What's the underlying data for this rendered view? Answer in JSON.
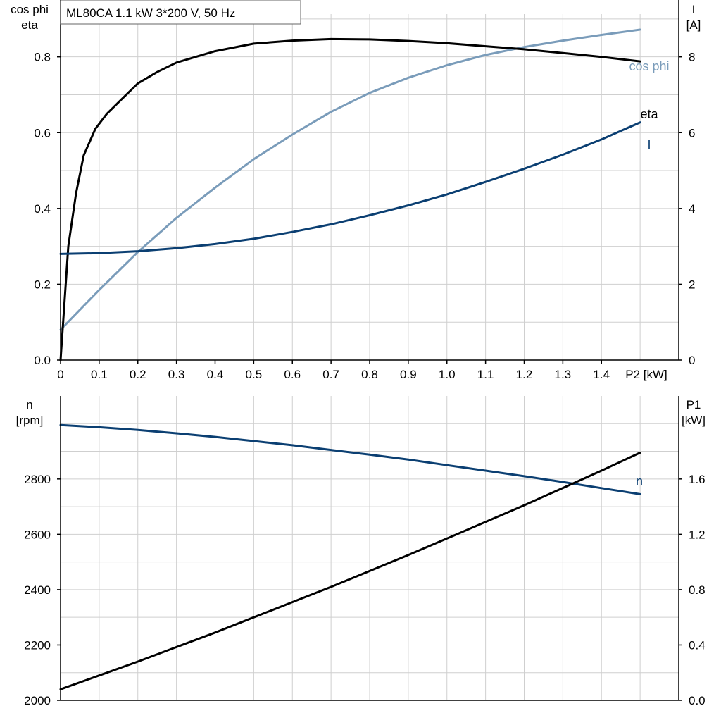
{
  "chart_data": [
    {
      "type": "line",
      "title": "ML80CA   1.1 kW   3*200 V, 50 Hz",
      "xlabel": "P2 [kW]",
      "xlim": [
        0,
        1.6
      ],
      "xticks": [
        0,
        0.1,
        0.2,
        0.3,
        0.4,
        0.5,
        0.6,
        0.7,
        0.8,
        0.9,
        1.0,
        1.1,
        1.2,
        1.3,
        1.4
      ],
      "left_axis": {
        "label_lines": [
          "cos phi",
          "eta"
        ],
        "ylim": [
          0,
          0.95
        ],
        "ticks": [
          "0.0",
          "0.2",
          "0.4",
          "0.6",
          "0.8"
        ],
        "tick_values": [
          0,
          0.2,
          0.4,
          0.6,
          0.8
        ]
      },
      "right_axis": {
        "label_lines": [
          "I",
          "[A]"
        ],
        "ylim": [
          0,
          9.5
        ],
        "ticks": [
          "0",
          "2",
          "4",
          "6",
          "8"
        ],
        "tick_values": [
          0,
          2,
          4,
          6,
          8
        ]
      },
      "grid": true,
      "series": [
        {
          "name": "cos phi",
          "axis": "left",
          "color": "#7a9cba",
          "x": [
            0,
            0.1,
            0.2,
            0.3,
            0.4,
            0.5,
            0.6,
            0.7,
            0.8,
            0.9,
            1.0,
            1.1,
            1.2,
            1.3,
            1.4,
            1.5
          ],
          "values": [
            0.08,
            0.185,
            0.285,
            0.375,
            0.455,
            0.53,
            0.595,
            0.655,
            0.705,
            0.745,
            0.778,
            0.805,
            0.826,
            0.843,
            0.858,
            0.872
          ]
        },
        {
          "name": "eta",
          "axis": "left",
          "color": "#000000",
          "x": [
            0,
            0.02,
            0.04,
            0.06,
            0.09,
            0.12,
            0.15,
            0.2,
            0.25,
            0.3,
            0.4,
            0.5,
            0.6,
            0.7,
            0.8,
            0.9,
            1.0,
            1.1,
            1.2,
            1.3,
            1.4,
            1.5
          ],
          "values": [
            0,
            0.3,
            0.44,
            0.54,
            0.61,
            0.65,
            0.68,
            0.73,
            0.76,
            0.785,
            0.815,
            0.835,
            0.843,
            0.847,
            0.846,
            0.842,
            0.836,
            0.828,
            0.82,
            0.81,
            0.8,
            0.788
          ]
        },
        {
          "name": "I",
          "axis": "right",
          "color": "#0b3f72",
          "x": [
            0,
            0.1,
            0.2,
            0.3,
            0.4,
            0.5,
            0.6,
            0.7,
            0.8,
            0.9,
            1.0,
            1.1,
            1.2,
            1.3,
            1.4,
            1.5
          ],
          "values": [
            2.8,
            2.82,
            2.87,
            2.95,
            3.06,
            3.2,
            3.38,
            3.58,
            3.82,
            4.08,
            4.37,
            4.7,
            5.05,
            5.42,
            5.82,
            6.27
          ]
        }
      ]
    },
    {
      "type": "line",
      "xlim": [
        0,
        1.6
      ],
      "left_axis": {
        "label_lines": [
          "n",
          "[rpm]"
        ],
        "ylim": [
          2000,
          3100
        ],
        "ticks": [
          "2000",
          "2200",
          "2400",
          "2600",
          "2800"
        ],
        "tick_values": [
          2000,
          2200,
          2400,
          2600,
          2800
        ]
      },
      "right_axis": {
        "label_lines": [
          "P1",
          "[kW]"
        ],
        "ylim": [
          0,
          2.2
        ],
        "ticks": [
          "0.0",
          "0.4",
          "0.8",
          "1.2",
          "1.6"
        ],
        "tick_values": [
          0,
          0.4,
          0.8,
          1.2,
          1.6
        ]
      },
      "grid": true,
      "series": [
        {
          "name": "n",
          "axis": "left",
          "color": "#0b3f72",
          "x": [
            0,
            0.1,
            0.2,
            0.3,
            0.4,
            0.5,
            0.6,
            0.7,
            0.8,
            0.9,
            1.0,
            1.1,
            1.2,
            1.3,
            1.4,
            1.5
          ],
          "values": [
            2995,
            2987,
            2977,
            2965,
            2952,
            2937,
            2922,
            2905,
            2888,
            2870,
            2850,
            2830,
            2810,
            2789,
            2767,
            2745
          ]
        },
        {
          "axis": "right",
          "color": "#000000",
          "x": [
            0,
            0.1,
            0.2,
            0.3,
            0.4,
            0.5,
            0.6,
            0.7,
            0.8,
            0.9,
            1.0,
            1.1,
            1.2,
            1.3,
            1.4,
            1.5
          ],
          "values": [
            0.08,
            0.18,
            0.28,
            0.385,
            0.49,
            0.6,
            0.71,
            0.82,
            0.935,
            1.05,
            1.17,
            1.29,
            1.41,
            1.535,
            1.66,
            1.79
          ]
        }
      ]
    }
  ]
}
